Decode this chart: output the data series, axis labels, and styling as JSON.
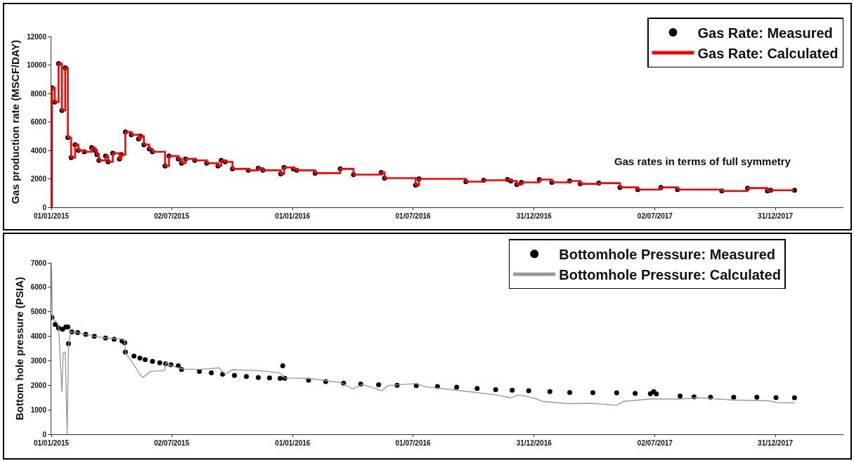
{
  "chart_data": [
    {
      "type": "step",
      "ylabel": "Gas production rate (MSCF/DAY)",
      "annotations": [
        "Gas rates in terms of full symmetry"
      ],
      "xlim": [
        "2015-01-01",
        "2018-04-13"
      ],
      "xticks": [
        {
          "value": "2015-01-01",
          "label": "01/01/2015"
        },
        {
          "value": "2015-07-02",
          "label": "02/07/2015"
        },
        {
          "value": "2016-01-01",
          "label": "01/01/2016"
        },
        {
          "value": "2016-07-01",
          "label": "01/07/2016"
        },
        {
          "value": "2016-12-31",
          "label": "31/12/2016"
        },
        {
          "value": "2017-07-02",
          "label": "02/07/2017"
        },
        {
          "value": "2017-12-31",
          "label": "31/12/2017"
        }
      ],
      "ylim": [
        0,
        12000
      ],
      "yticks": [
        0,
        2000,
        4000,
        6000,
        8000,
        10000,
        12000
      ],
      "legend": "top right",
      "series": [
        {
          "name": "Gas Rate: Measured",
          "type": "scatter",
          "marker": "circle",
          "color": "#000000",
          "x": [
            "2015-01-02",
            "2015-01-06",
            "2015-01-12",
            "2015-01-17",
            "2015-01-22",
            "2015-01-26",
            "2015-01-31",
            "2015-02-06",
            "2015-02-11",
            "2015-02-20",
            "2015-03-03",
            "2015-03-08",
            "2015-03-11",
            "2015-03-14",
            "2015-03-24",
            "2015-03-28",
            "2015-04-04",
            "2015-04-14",
            "2015-04-17",
            "2015-04-23",
            "2015-05-02",
            "2015-05-13",
            "2015-05-16",
            "2015-05-21",
            "2015-05-29",
            "2015-06-03",
            "2015-06-22",
            "2015-06-28",
            "2015-07-12",
            "2015-07-17",
            "2015-07-23",
            "2015-08-06",
            "2015-08-24",
            "2015-09-10",
            "2015-09-15",
            "2015-09-21",
            "2015-10-02",
            "2015-10-26",
            "2015-11-10",
            "2015-11-17",
            "2015-12-14",
            "2015-12-19",
            "2016-01-02",
            "2016-01-07",
            "2016-02-04",
            "2016-03-13",
            "2016-04-02",
            "2016-05-14",
            "2016-05-19",
            "2016-07-05",
            "2016-07-10",
            "2016-09-19",
            "2016-10-16",
            "2016-11-21",
            "2016-11-26",
            "2016-12-05",
            "2016-12-12",
            "2017-01-08",
            "2017-01-27",
            "2017-02-23",
            "2017-03-11",
            "2017-04-08",
            "2017-05-10",
            "2017-06-06",
            "2017-07-11",
            "2017-08-05",
            "2017-10-11",
            "2017-11-19",
            "2017-12-19",
            "2017-12-24",
            "2018-01-29"
          ],
          "values": [
            8400,
            7400,
            10100,
            6800,
            9800,
            4900,
            3500,
            4400,
            4000,
            3900,
            4200,
            4000,
            3700,
            3300,
            3600,
            3200,
            3800,
            3400,
            3700,
            5300,
            5100,
            4800,
            5000,
            4400,
            4100,
            3900,
            2900,
            3600,
            3400,
            3100,
            3400,
            3300,
            3100,
            2900,
            3300,
            3200,
            2700,
            2600,
            2750,
            2600,
            2350,
            2800,
            2700,
            2600,
            2400,
            2700,
            2300,
            2450,
            2050,
            1550,
            2000,
            1800,
            1900,
            1950,
            1850,
            1600,
            1750,
            1950,
            1750,
            1850,
            1650,
            1700,
            1400,
            1250,
            1400,
            1250,
            1150,
            1350,
            1150,
            1200,
            1200
          ]
        },
        {
          "name": "Gas Rate: Calculated",
          "color": "#ff0000",
          "x": [
            "2015-01-01",
            "2015-01-02",
            "2015-01-06",
            "2015-01-12",
            "2015-01-17",
            "2015-01-22",
            "2015-01-26",
            "2015-01-31",
            "2015-02-06",
            "2015-02-11",
            "2015-02-20",
            "2015-03-03",
            "2015-03-08",
            "2015-03-11",
            "2015-03-14",
            "2015-03-24",
            "2015-03-28",
            "2015-04-04",
            "2015-04-14",
            "2015-04-17",
            "2015-04-23",
            "2015-05-02",
            "2015-05-13",
            "2015-05-16",
            "2015-05-21",
            "2015-05-29",
            "2015-06-03",
            "2015-06-22",
            "2015-06-28",
            "2015-07-12",
            "2015-07-17",
            "2015-07-23",
            "2015-08-06",
            "2015-08-24",
            "2015-09-10",
            "2015-09-15",
            "2015-09-21",
            "2015-10-02",
            "2015-10-26",
            "2015-11-10",
            "2015-11-17",
            "2015-12-14",
            "2015-12-19",
            "2016-01-02",
            "2016-01-07",
            "2016-02-04",
            "2016-03-13",
            "2016-04-02",
            "2016-05-14",
            "2016-05-19",
            "2016-07-05",
            "2016-07-10",
            "2016-09-19",
            "2016-10-16",
            "2016-11-21",
            "2016-11-26",
            "2016-12-05",
            "2016-12-12",
            "2017-01-08",
            "2017-01-27",
            "2017-02-23",
            "2017-03-11",
            "2017-04-08",
            "2017-05-10",
            "2017-06-06",
            "2017-07-11",
            "2017-08-05",
            "2017-10-11",
            "2017-11-19",
            "2017-12-19",
            "2017-12-24",
            "2018-01-29"
          ],
          "values": [
            0,
            8400,
            7400,
            10100,
            6800,
            9800,
            4900,
            3500,
            4400,
            4000,
            3900,
            4200,
            4000,
            3700,
            3300,
            3600,
            3200,
            3800,
            3400,
            3700,
            5300,
            5100,
            4800,
            5000,
            4400,
            4100,
            3900,
            2900,
            3600,
            3400,
            3100,
            3400,
            3300,
            3100,
            2900,
            3300,
            3200,
            2700,
            2600,
            2750,
            2600,
            2350,
            2800,
            2700,
            2600,
            2400,
            2700,
            2300,
            2450,
            2050,
            1550,
            2000,
            1800,
            1900,
            1950,
            1850,
            1600,
            1750,
            1950,
            1750,
            1850,
            1650,
            1700,
            1400,
            1250,
            1400,
            1250,
            1150,
            1350,
            1150,
            1200,
            1200
          ]
        }
      ]
    },
    {
      "type": "line",
      "ylabel": "Bottom hole pressure (PSIA)",
      "xlim": [
        "2015-01-01",
        "2018-04-13"
      ],
      "xticks": [
        {
          "value": "2015-01-01",
          "label": "01/01/2015"
        },
        {
          "value": "2015-07-02",
          "label": "02/07/2015"
        },
        {
          "value": "2016-01-01",
          "label": "01/01/2016"
        },
        {
          "value": "2016-07-01",
          "label": "01/07/2016"
        },
        {
          "value": "2016-12-31",
          "label": "31/12/2016"
        },
        {
          "value": "2017-07-02",
          "label": "02/07/2017"
        },
        {
          "value": "2017-12-31",
          "label": "31/12/2017"
        }
      ],
      "ylim": [
        0,
        7000
      ],
      "yticks": [
        0,
        1000,
        2000,
        3000,
        4000,
        5000,
        6000,
        7000
      ],
      "legend": "top right",
      "series": [
        {
          "name": "Bottomhole Pressure: Measured",
          "type": "scatter",
          "marker": "circle",
          "color": "#000000",
          "x": [
            "2015-01-02",
            "2015-01-07",
            "2015-01-12",
            "2015-01-18",
            "2015-01-23",
            "2015-01-26",
            "2015-01-27",
            "2015-02-01",
            "2015-02-10",
            "2015-02-22",
            "2015-03-07",
            "2015-03-24",
            "2015-04-06",
            "2015-04-18",
            "2015-04-22",
            "2015-04-23",
            "2015-05-06",
            "2015-05-15",
            "2015-05-23",
            "2015-06-03",
            "2015-06-14",
            "2015-06-23",
            "2015-07-01",
            "2015-07-12",
            "2015-07-17",
            "2015-08-13",
            "2015-08-31",
            "2015-09-17",
            "2015-10-05",
            "2015-10-23",
            "2015-11-10",
            "2015-11-27",
            "2015-12-13",
            "2015-12-17",
            "2015-12-20",
            "2016-01-25",
            "2016-02-20",
            "2016-03-18",
            "2016-04-13",
            "2016-05-10",
            "2016-06-07",
            "2016-07-06",
            "2016-08-07",
            "2016-09-05",
            "2016-10-06",
            "2016-11-03",
            "2016-11-28",
            "2016-12-23",
            "2017-01-24",
            "2017-02-23",
            "2017-03-30",
            "2017-05-05",
            "2017-06-02",
            "2017-06-25",
            "2017-06-30",
            "2017-07-04",
            "2017-08-09",
            "2017-08-30",
            "2017-09-24",
            "2017-10-29",
            "2017-12-03",
            "2018-01-01",
            "2018-01-29"
          ],
          "values": [
            4770,
            4480,
            4340,
            4290,
            4380,
            4380,
            3700,
            4180,
            4150,
            4080,
            4000,
            3930,
            3880,
            3810,
            3740,
            3360,
            3190,
            3110,
            3050,
            2980,
            2920,
            2880,
            2840,
            2800,
            2650,
            2570,
            2510,
            2450,
            2400,
            2360,
            2320,
            2300,
            2280,
            2800,
            2290,
            2210,
            2150,
            2090,
            2050,
            2020,
            2000,
            1990,
            1950,
            1920,
            1870,
            1820,
            1800,
            1780,
            1740,
            1710,
            1700,
            1690,
            1670,
            1660,
            1740,
            1650,
            1560,
            1530,
            1510,
            1510,
            1510,
            1500,
            1490
          ]
        },
        {
          "name": "Bottomhole Pressure: Calculated",
          "color": "#9a9a9a",
          "x": [
            "2015-01-01",
            "2015-01-03",
            "2015-01-09",
            "2015-01-12",
            "2015-01-17",
            "2015-01-19",
            "2015-01-22",
            "2015-01-25",
            "2015-01-27",
            "2015-01-30",
            "2015-02-10",
            "2015-03-07",
            "2015-03-24",
            "2015-04-18",
            "2015-04-22",
            "2015-04-23",
            "2015-05-02",
            "2015-05-16",
            "2015-05-20",
            "2015-05-31",
            "2015-06-21",
            "2015-06-24",
            "2015-07-01",
            "2015-07-19",
            "2015-08-13",
            "2015-09-12",
            "2015-09-21",
            "2015-10-02",
            "2015-11-09",
            "2015-12-11",
            "2015-12-17",
            "2015-12-20",
            "2016-01-25",
            "2016-03-14",
            "2016-04-01",
            "2016-04-15",
            "2016-05-15",
            "2016-05-24",
            "2016-07-06",
            "2016-07-20",
            "2016-09-05",
            "2016-11-03",
            "2016-11-25",
            "2016-12-09",
            "2016-12-30",
            "2017-01-13",
            "2017-02-23",
            "2017-03-27",
            "2017-05-05",
            "2017-05-15",
            "2017-06-25",
            "2017-08-09",
            "2017-09-05",
            "2017-10-29",
            "2017-12-21",
            "2018-01-01",
            "2018-01-29"
          ],
          "values": [
            6900,
            4700,
            4580,
            4450,
            1720,
            3330,
            3350,
            0,
            3620,
            4190,
            4150,
            4000,
            3930,
            3890,
            3800,
            3330,
            3000,
            2400,
            2330,
            2570,
            2600,
            2950,
            2800,
            2660,
            2650,
            2710,
            2450,
            2640,
            2600,
            2520,
            2400,
            2300,
            2280,
            2110,
            1850,
            2040,
            1780,
            1990,
            2070,
            1940,
            1800,
            1610,
            1490,
            1610,
            1490,
            1340,
            1250,
            1270,
            1180,
            1340,
            1440,
            1440,
            1490,
            1400,
            1370,
            1300,
            1290
          ]
        }
      ]
    }
  ]
}
